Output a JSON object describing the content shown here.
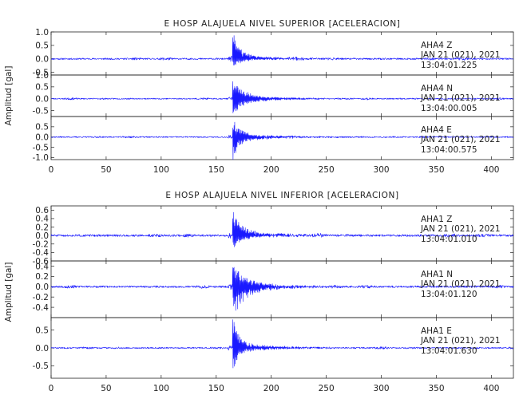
{
  "chart_data": [
    {
      "type": "line",
      "title": "E HOSP ALAJUELA NIVEL SUPERIOR [ACELERACION]",
      "ylabel": "Amplitud [gal]",
      "xlabel": "",
      "xlim": [
        0,
        420
      ],
      "xticks": [
        0,
        50,
        100,
        150,
        200,
        250,
        300,
        350,
        400
      ],
      "line_color": "#1a1aff",
      "series": [
        {
          "station": "AHA4",
          "component": "Z",
          "date": "JAN 21 (021), 2021",
          "time": "13:04:01.225",
          "ylim": [
            -0.6,
            1.0
          ],
          "yticks": [
            -0.5,
            0.0,
            0.5,
            1.0
          ],
          "ytick_labels": [
            "-0.5",
            "0.0",
            "0.5",
            "1.0"
          ],
          "noise_amp": 0.03,
          "event_time": 165,
          "peak_pos": 0.9,
          "peak_neg": -0.3,
          "decay": 6,
          "seed": 11
        },
        {
          "station": "AHA4",
          "component": "N",
          "date": "JAN 21 (021), 2021",
          "time": "13:04:00.005",
          "ylim": [
            -0.75,
            1.0
          ],
          "yticks": [
            -0.5,
            0.0,
            0.5,
            1.0
          ],
          "ytick_labels": [
            "-0.5",
            "0.0",
            "0.5",
            "1.0"
          ],
          "noise_amp": 0.025,
          "event_time": 165,
          "peak_pos": 0.7,
          "peak_neg": -0.65,
          "decay": 10,
          "seed": 23
        },
        {
          "station": "AHA4",
          "component": "E",
          "date": "JAN 21 (021), 2021",
          "time": "13:04:00.575",
          "ylim": [
            -1.1,
            1.0
          ],
          "yticks": [
            -1.0,
            -0.5,
            0.0,
            0.5,
            1.0
          ],
          "ytick_labels": [
            "-1.0",
            "-0.5",
            "0.0",
            "0.5",
            ""
          ],
          "noise_amp": 0.03,
          "event_time": 165,
          "peak_pos": 0.95,
          "peak_neg": -1.0,
          "decay": 6,
          "seed": 37
        }
      ]
    },
    {
      "type": "line",
      "title": "E HOSP ALAJUELA NIVEL INFERIOR [ACELERACION]",
      "ylabel": "Amplitud [gal]",
      "xlabel": "",
      "xlim": [
        0,
        420
      ],
      "xticks": [
        0,
        50,
        100,
        150,
        200,
        250,
        300,
        350,
        400
      ],
      "line_color": "#1a1aff",
      "series": [
        {
          "station": "AHA1",
          "component": "Z",
          "date": "JAN 21 (021), 2021",
          "time": "13:04:01.010",
          "ylim": [
            -0.6,
            0.7
          ],
          "yticks": [
            -0.6,
            -0.4,
            -0.2,
            0.0,
            0.2,
            0.4,
            0.6
          ],
          "ytick_labels": [
            "-0.6",
            "-0.4",
            "-0.2",
            "0.0",
            "0.2",
            "0.4",
            "0.6"
          ],
          "noise_amp": 0.025,
          "event_time": 165,
          "peak_pos": 0.6,
          "peak_neg": -0.3,
          "decay": 7,
          "seed": 51
        },
        {
          "station": "AHA1",
          "component": "N",
          "date": "JAN 21 (021), 2021",
          "time": "13:04:01.120",
          "ylim": [
            -0.6,
            0.5
          ],
          "yticks": [
            -0.4,
            -0.2,
            0.0,
            0.2,
            0.4
          ],
          "ytick_labels": [
            "-0.4",
            "-0.2",
            "0.0",
            "0.2",
            "0.4"
          ],
          "noise_amp": 0.018,
          "event_time": 165,
          "peak_pos": 0.45,
          "peak_neg": -0.55,
          "decay": 10,
          "seed": 67
        },
        {
          "station": "AHA1",
          "component": "E",
          "date": "JAN 21 (021), 2021",
          "time": "13:04:01.630",
          "ylim": [
            -0.85,
            0.85
          ],
          "yticks": [
            -0.5,
            0.0,
            0.5
          ],
          "ytick_labels": [
            "-0.5",
            "0.0",
            "0.5"
          ],
          "noise_amp": 0.02,
          "event_time": 165,
          "peak_pos": 0.75,
          "peak_neg": -0.55,
          "decay": 6,
          "seed": 83
        }
      ]
    }
  ]
}
